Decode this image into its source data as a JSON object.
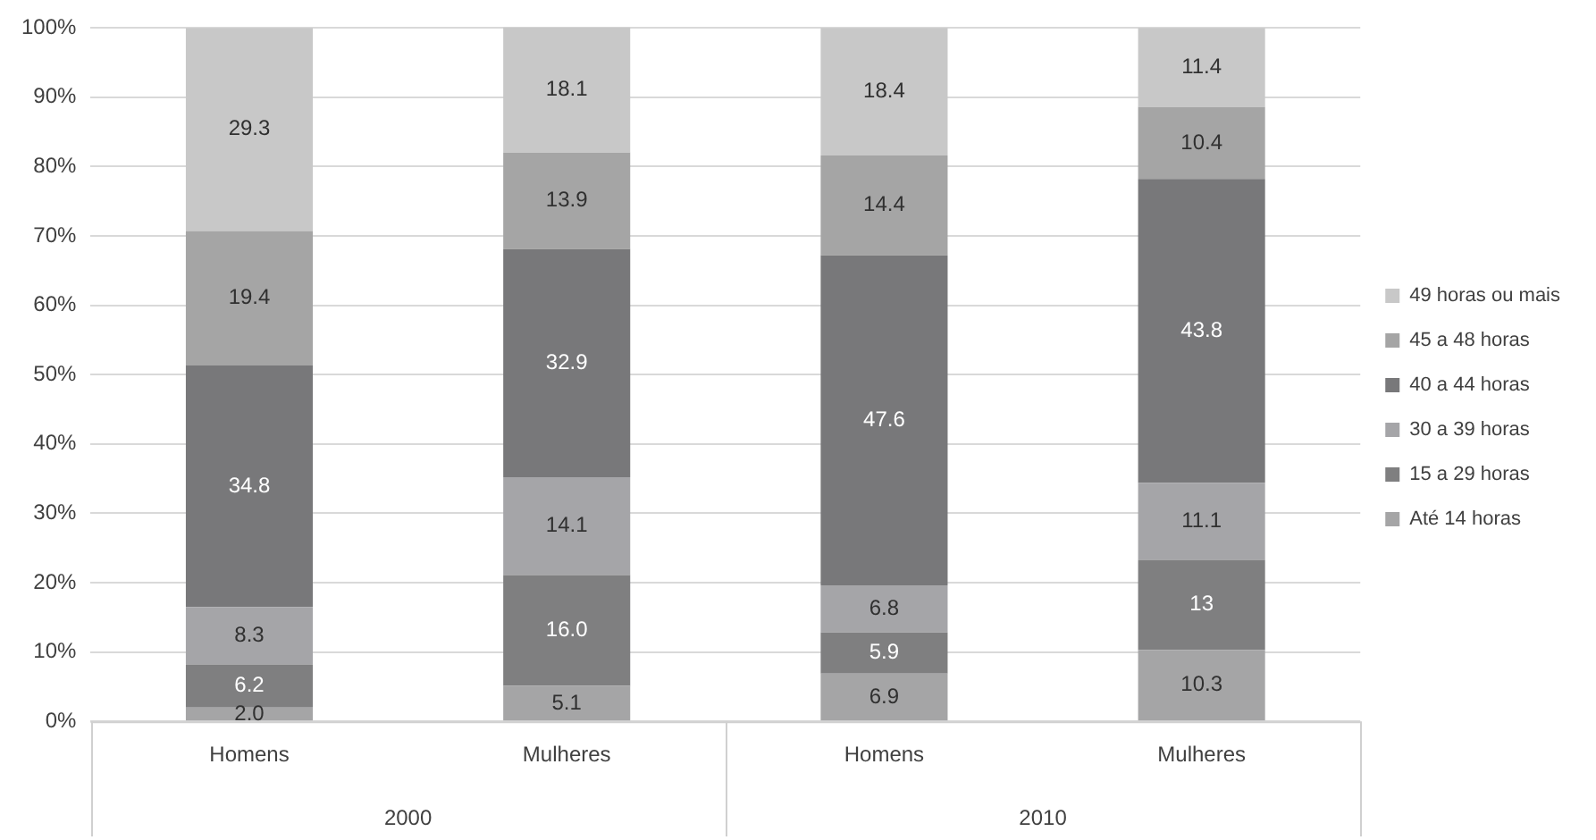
{
  "chart_data": {
    "type": "bar",
    "stacked": true,
    "categories": [
      "Homens",
      "Mulheres",
      "Homens",
      "Mulheres"
    ],
    "annotations": [
      "2000",
      "2010"
    ],
    "series": [
      {
        "name": "Até 14 horas",
        "color": "#a5a5a6",
        "values": [
          2.0,
          5.1,
          6.9,
          10.3
        ],
        "value_labels": [
          "2.0",
          "5.1",
          "6.9",
          "10.3"
        ]
      },
      {
        "name": "15 a 29 horas",
        "color": "#7f7f80",
        "values": [
          6.2,
          16.0,
          5.9,
          13
        ],
        "value_labels": [
          "6.2",
          "16.0",
          "5.9",
          "13"
        ]
      },
      {
        "name": "30 a 39 horas",
        "color": "#a5a5a8",
        "values": [
          8.3,
          14.1,
          6.8,
          11.1
        ],
        "value_labels": [
          "8.3",
          "14.1",
          "6.8",
          "11.1"
        ]
      },
      {
        "name": "40 a 44 horas",
        "color": "#78787a",
        "values": [
          34.8,
          32.9,
          47.6,
          43.8
        ],
        "value_labels": [
          "34.8",
          "32.9",
          "47.6",
          "43.8"
        ]
      },
      {
        "name": "45 a 48 horas",
        "color": "#a5a5a5",
        "values": [
          19.4,
          13.9,
          14.4,
          10.4
        ],
        "value_labels": [
          "19.4",
          "13.9",
          "14.4",
          "10.4"
        ]
      },
      {
        "name": "49 horas ou mais",
        "color": "#c8c8c8",
        "values": [
          29.3,
          18.1,
          18.4,
          11.4
        ],
        "value_labels": [
          "29.3",
          "18.1",
          "18.4",
          "11.4"
        ]
      }
    ],
    "ylim": [
      0,
      100.1
    ],
    "yticks": [
      {
        "value": 0,
        "label": "0%"
      },
      {
        "value": 10,
        "label": "10%"
      },
      {
        "value": 20,
        "label": "20%"
      },
      {
        "value": 30,
        "label": "30%"
      },
      {
        "value": 40,
        "label": "40%"
      },
      {
        "value": 50,
        "label": "50%"
      },
      {
        "value": 60,
        "label": "60%"
      },
      {
        "value": 70,
        "label": "70%"
      },
      {
        "value": 80,
        "label": "80%"
      },
      {
        "value": 90,
        "label": "90%"
      },
      {
        "value": 100,
        "label": "100%"
      }
    ],
    "grid": "y",
    "legend": "right"
  }
}
